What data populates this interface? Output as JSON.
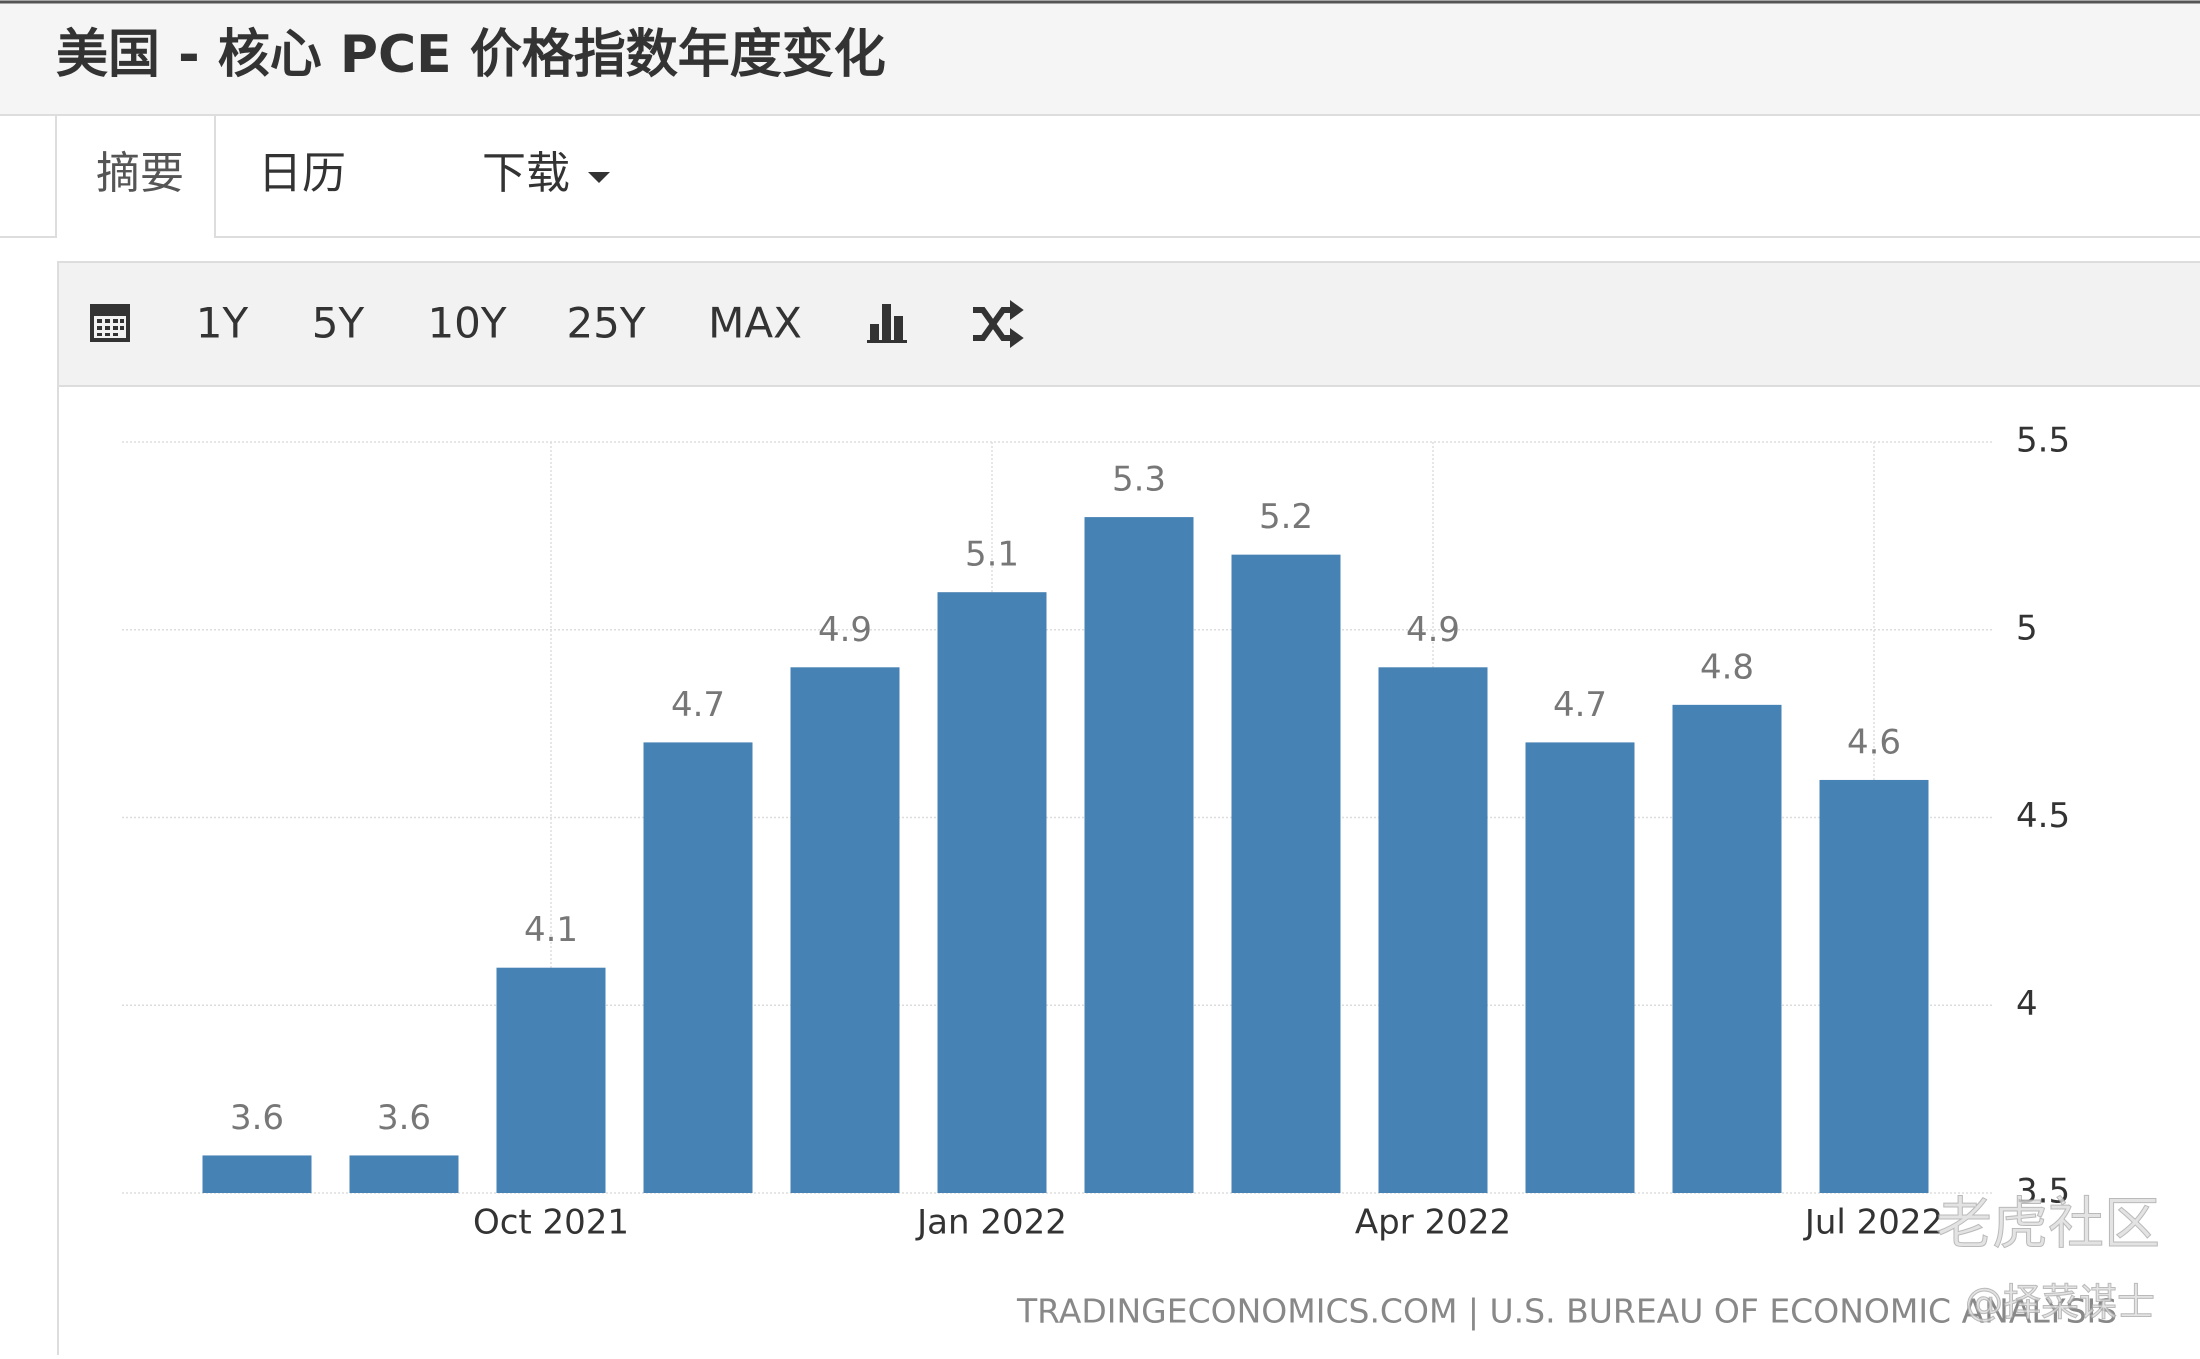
{
  "header": {
    "title": "美国 - 核心 PCE 价格指数年度变化"
  },
  "tabs": [
    "摘要",
    "日历",
    "下载"
  ],
  "toolbar": [
    "1Y",
    "5Y",
    "10Y",
    "25Y",
    "MAX"
  ],
  "chart_data": {
    "type": "bar",
    "categories": [
      null,
      null,
      "Oct 2021",
      null,
      null,
      "Jan 2022",
      null,
      null,
      "Apr 2022",
      null,
      null,
      "Jul 2022"
    ],
    "values": [
      3.6,
      3.6,
      4.1,
      4.7,
      4.9,
      5.1,
      5.3,
      5.2,
      4.9,
      4.7,
      4.8,
      4.6
    ],
    "color": "#4682b4",
    "ylim": [
      3.5,
      5.5
    ],
    "yticks": [
      3.5,
      4,
      4.5,
      5,
      5.5
    ],
    "grid": true,
    "source": "TRADINGECONOMICS.COM | U.S. BUREAU OF ECONOMIC ANALYSIS"
  },
  "watermark": [
    "老虎社区",
    "@择菜谋士"
  ]
}
